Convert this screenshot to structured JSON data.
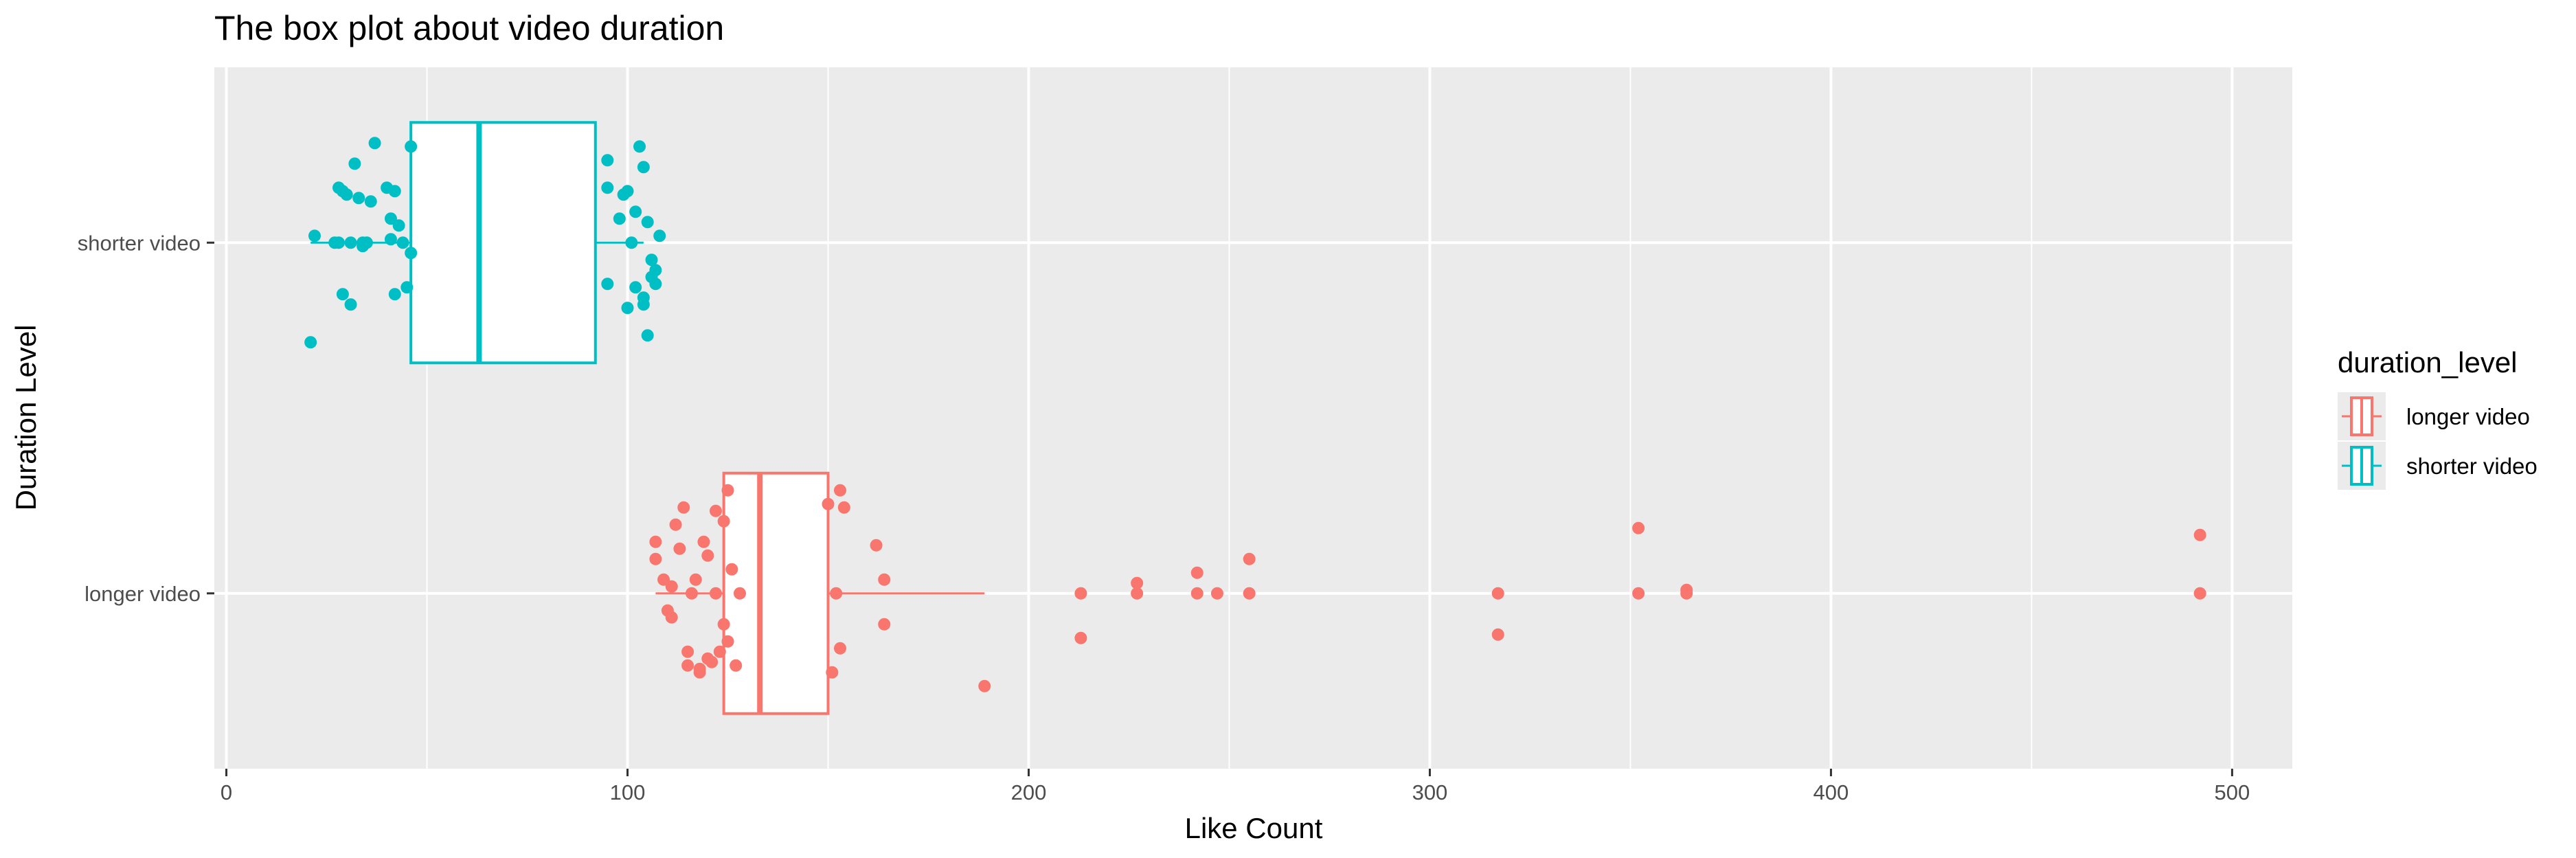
{
  "chart_data": {
    "type": "box",
    "title": "The box plot about video duration",
    "xlabel": "Like Count",
    "ylabel": "Duration Level",
    "xlim": [
      -3,
      515
    ],
    "x_ticks": [
      0,
      100,
      200,
      300,
      400,
      500
    ],
    "categories": [
      "longer video",
      "shorter video"
    ],
    "grid": true,
    "legend": {
      "title": "duration_level",
      "position": "right"
    },
    "colors": {
      "longer video": "#F8766D",
      "shorter video": "#00BFC4",
      "panel": "#EBEBEB",
      "grid": "#FFFFFF",
      "box_fill": "#FFFFFF"
    },
    "series": [
      {
        "name": "longer video",
        "color": "#F8766D",
        "box": {
          "min": 107,
          "q1": 124,
          "median": 133,
          "q3": 150,
          "max": 189
        },
        "points": [
          [
            107,
            0.15
          ],
          [
            107,
            0.1
          ],
          [
            109,
            0.04
          ],
          [
            110,
            -0.05
          ],
          [
            111,
            -0.07
          ],
          [
            111,
            0.02
          ],
          [
            112,
            0.2
          ],
          [
            113,
            0.13
          ],
          [
            114,
            0.25
          ],
          [
            115,
            -0.17
          ],
          [
            115,
            -0.21
          ],
          [
            116,
            0.0
          ],
          [
            117,
            0.04
          ],
          [
            118,
            -0.23
          ],
          [
            118,
            -0.22
          ],
          [
            119,
            0.15
          ],
          [
            120,
            -0.19
          ],
          [
            120,
            0.11
          ],
          [
            121,
            -0.2
          ],
          [
            122,
            0.0
          ],
          [
            122,
            0.24
          ],
          [
            123,
            -0.17
          ],
          [
            124,
            -0.09
          ],
          [
            124,
            0.21
          ],
          [
            125,
            -0.14
          ],
          [
            125,
            0.3
          ],
          [
            126,
            0.07
          ],
          [
            127,
            -0.21
          ],
          [
            128,
            0.0
          ],
          [
            150,
            0.26
          ],
          [
            151,
            -0.23
          ],
          [
            152,
            0.0
          ],
          [
            153,
            0.3
          ],
          [
            154,
            0.25
          ],
          [
            153,
            -0.16
          ],
          [
            162,
            0.14
          ],
          [
            164,
            0.04
          ],
          [
            164,
            -0.09
          ],
          [
            189,
            -0.27
          ],
          [
            213,
            0.0
          ],
          [
            213,
            -0.13
          ],
          [
            227,
            0.0
          ],
          [
            227,
            0.03
          ],
          [
            242,
            0.06
          ],
          [
            242,
            0.0
          ],
          [
            247,
            0.0
          ],
          [
            255,
            0.0
          ],
          [
            255,
            0.1
          ],
          [
            317,
            0.0
          ],
          [
            317,
            -0.12
          ],
          [
            352,
            0.0
          ],
          [
            352,
            0.19
          ],
          [
            364,
            0.01
          ],
          [
            364,
            0.0
          ],
          [
            492,
            0.0
          ],
          [
            492,
            0.17
          ]
        ]
      },
      {
        "name": "shorter video",
        "color": "#00BFC4",
        "box": {
          "min": 21,
          "q1": 46,
          "median": 63,
          "q3": 92,
          "max": 104
        },
        "points": [
          [
            21,
            -0.29
          ],
          [
            22,
            0.02
          ],
          [
            27,
            0.0
          ],
          [
            28,
            0.16
          ],
          [
            28,
            0.0
          ],
          [
            29,
            0.15
          ],
          [
            29,
            -0.15
          ],
          [
            30,
            0.14
          ],
          [
            31,
            -0.18
          ],
          [
            31,
            0.0
          ],
          [
            32,
            0.23
          ],
          [
            33,
            0.13
          ],
          [
            34,
            -0.01
          ],
          [
            34,
            0.0
          ],
          [
            35,
            0.0
          ],
          [
            36,
            0.12
          ],
          [
            37,
            0.29
          ],
          [
            40,
            0.16
          ],
          [
            41,
            0.07
          ],
          [
            41,
            0.01
          ],
          [
            42,
            0.15
          ],
          [
            42,
            -0.15
          ],
          [
            43,
            0.05
          ],
          [
            44,
            0.0
          ],
          [
            45,
            -0.13
          ],
          [
            46,
            0.28
          ],
          [
            46,
            -0.03
          ],
          [
            95,
            0.16
          ],
          [
            95,
            0.24
          ],
          [
            95,
            -0.12
          ],
          [
            98,
            0.07
          ],
          [
            99,
            0.14
          ],
          [
            100,
            0.15
          ],
          [
            100,
            -0.19
          ],
          [
            101,
            0.0
          ],
          [
            102,
            0.09
          ],
          [
            102,
            -0.13
          ],
          [
            103,
            0.28
          ],
          [
            104,
            0.22
          ],
          [
            104,
            -0.18
          ],
          [
            104,
            -0.16
          ],
          [
            105,
            0.06
          ],
          [
            105,
            -0.27
          ],
          [
            106,
            -0.05
          ],
          [
            106,
            -0.1
          ],
          [
            107,
            -0.08
          ],
          [
            107,
            -0.12
          ],
          [
            108,
            0.02
          ]
        ]
      }
    ]
  }
}
